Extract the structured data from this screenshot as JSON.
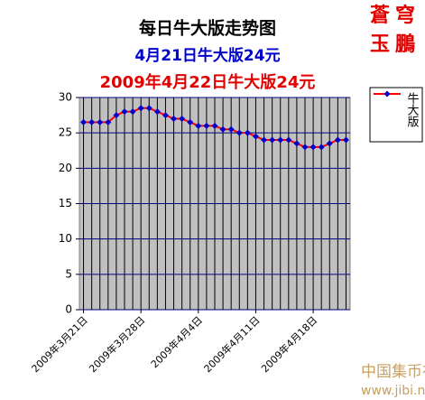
{
  "chart_data": {
    "type": "line",
    "title": "每日牛大版走势图",
    "subtitle": "4月21日牛大版24元",
    "annotation": "2009年4月22日牛大版24元",
    "categories": [
      "2009年3月21日",
      null,
      null,
      null,
      null,
      null,
      null,
      "2009年3月28日",
      null,
      null,
      null,
      null,
      null,
      null,
      "2009年4月4日",
      null,
      null,
      null,
      null,
      null,
      null,
      "2009年4月11日",
      null,
      null,
      null,
      null,
      null,
      null,
      "2009年4月18日",
      null,
      null,
      null,
      null
    ],
    "series": [
      {
        "name": "牛大版",
        "color": "#ff0000",
        "marker_color": "#0000cc",
        "values": [
          26.5,
          26.5,
          26.5,
          26.5,
          27.5,
          28,
          28,
          28.5,
          28.5,
          28,
          27.5,
          27,
          27,
          26.5,
          26,
          26,
          26,
          25.5,
          25.5,
          25,
          25,
          24.5,
          24,
          24,
          24,
          24,
          23.5,
          23,
          23,
          23,
          23.5,
          24,
          24
        ]
      }
    ],
    "ylim": [
      0,
      30
    ],
    "yticks": [
      0,
      5,
      10,
      15,
      20,
      25,
      30
    ],
    "grid": true,
    "legend": "right"
  },
  "logo": [
    "蒼穹",
    "玉鵬"
  ],
  "watermark": {
    "text": "中国集币在线",
    "url": "www.jibi.net"
  }
}
